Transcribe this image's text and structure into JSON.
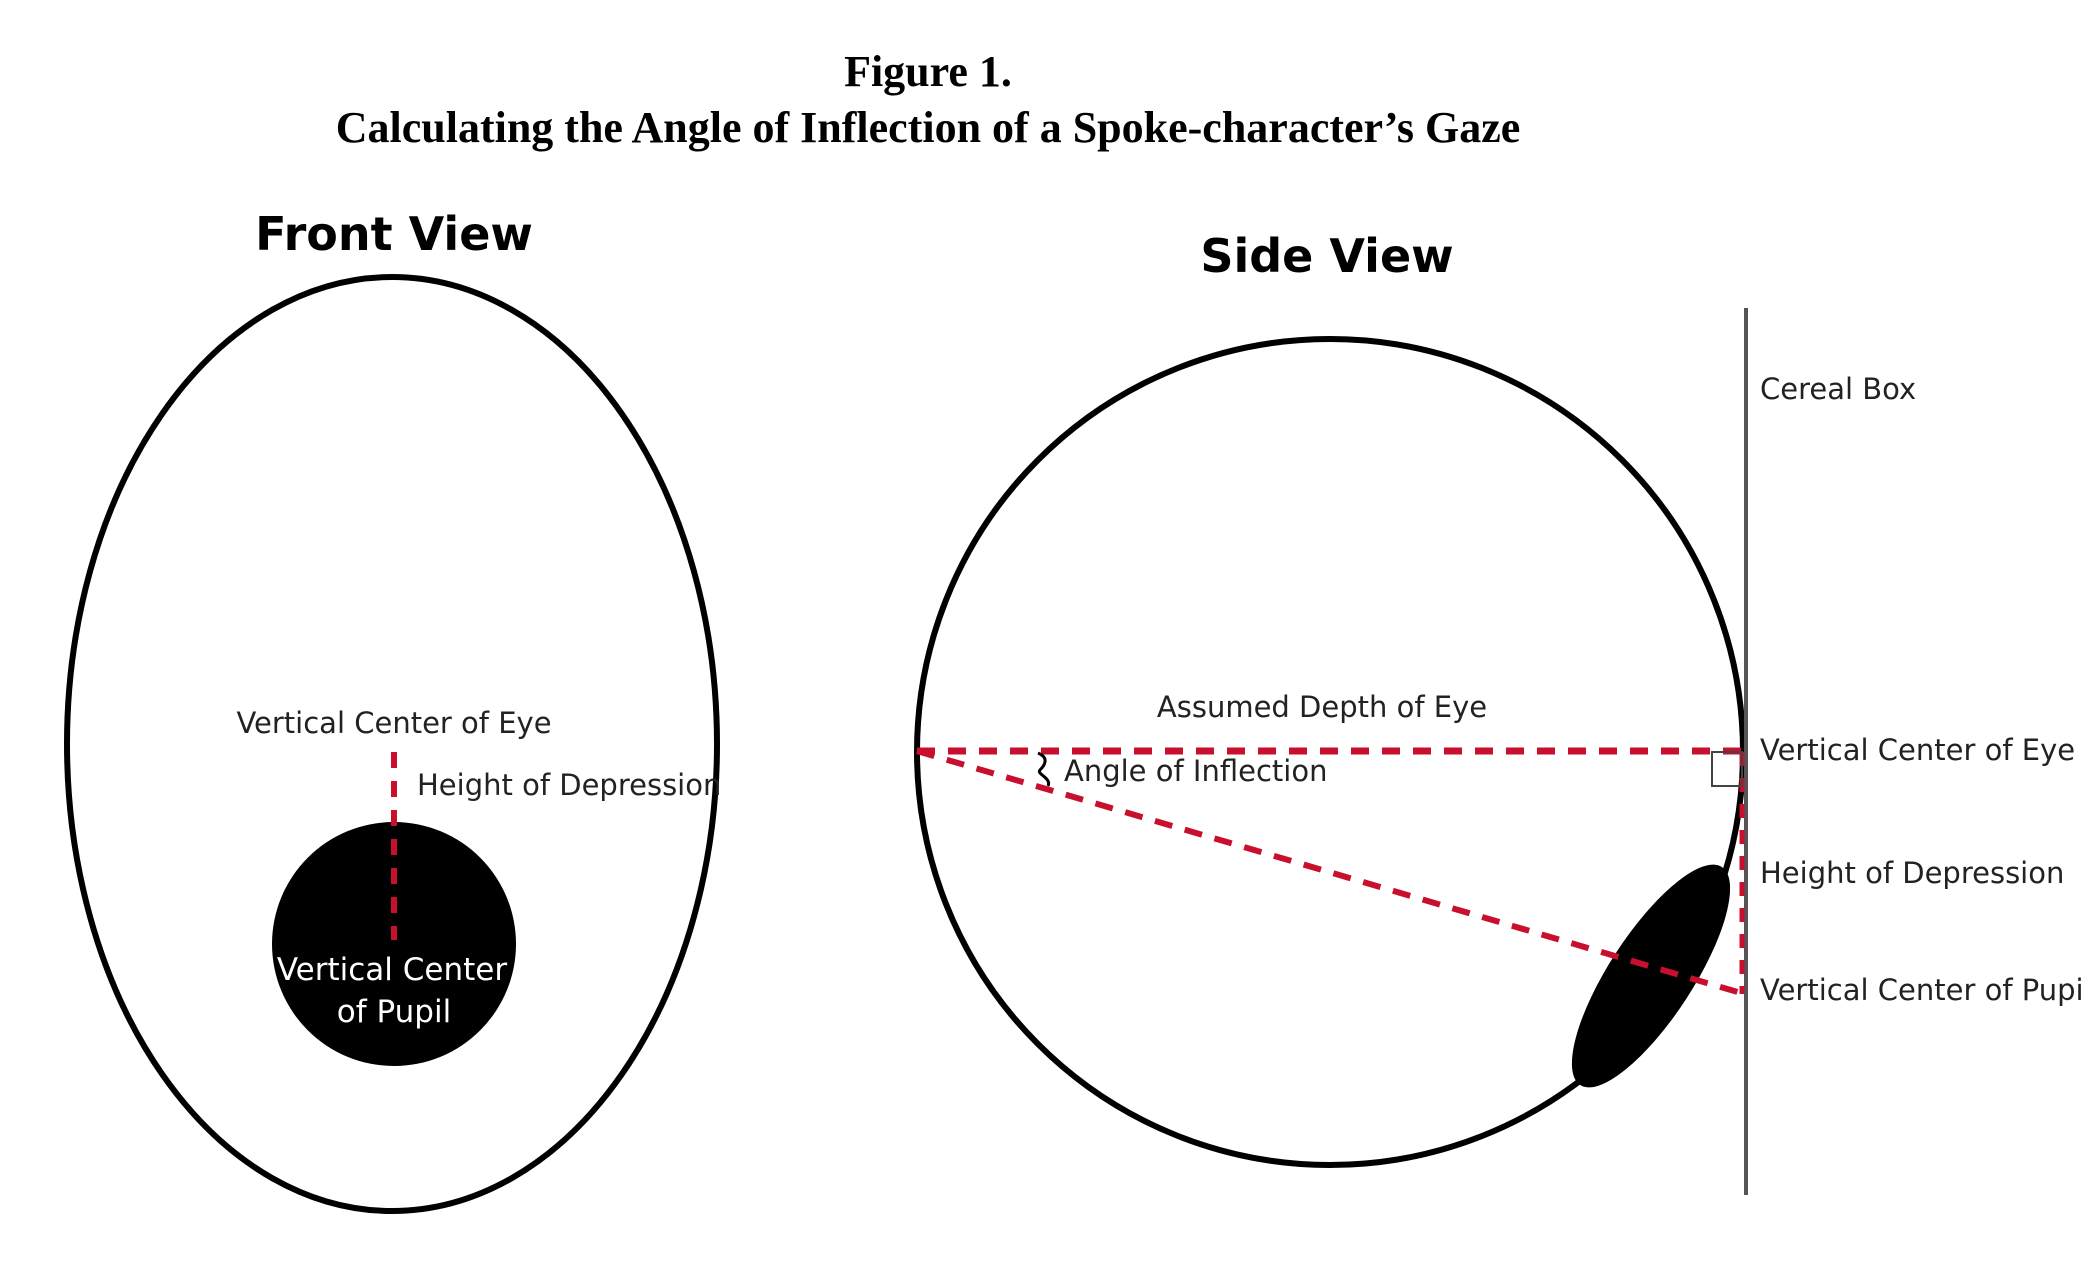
{
  "figure": {
    "number": "Figure 1.",
    "title": "Calculating the Angle of Inflection of a Spoke-character’s Gaze"
  },
  "front_view": {
    "title": "Front View",
    "vertical_center_of_eye_label": "Vertical Center of Eye",
    "height_of_depression_label": "Height of Depression",
    "pupil_label_line1": "Vertical Center",
    "pupil_label_line2": "of Pupil"
  },
  "side_view": {
    "title": "Side View",
    "cereal_box_label": "Cereal Box",
    "assumed_depth_label": "Assumed Depth of Eye",
    "angle_label": "Angle of Inflection",
    "vertical_center_of_eye_label": "Vertical Center of Eye",
    "height_of_depression_label": "Height of Depression",
    "vertical_center_of_pupil_label": "Vertical Center of Pupil"
  },
  "colors": {
    "dashed_line": "#c8102e",
    "outline": "#000000",
    "cereal_box_line": "#555555"
  }
}
